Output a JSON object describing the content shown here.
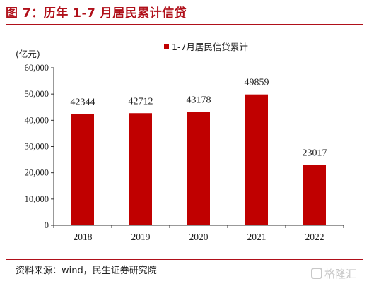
{
  "figure": {
    "title": "图 7：历年 1-7 月居民累计信贷",
    "source": "资料来源：wind，民生证券研究院",
    "watermark": "格隆汇"
  },
  "colors": {
    "bar": "#c00000",
    "accent": "#b0101a"
  },
  "chart_data": {
    "type": "bar",
    "categories": [
      "2018",
      "2019",
      "2020",
      "2021",
      "2022"
    ],
    "series": [
      {
        "name": "1-7月居民信贷累计",
        "values": [
          42344,
          42712,
          43178,
          49859,
          23017
        ]
      }
    ],
    "data_labels": [
      "42344",
      "42712",
      "43178",
      "49859",
      "23017"
    ],
    "ylabel": "(亿元)",
    "ylim": [
      0,
      60000
    ],
    "yticks": [
      "0",
      "10,000",
      "20,000",
      "30,000",
      "40,000",
      "50,000",
      "60,000"
    ],
    "grid": false,
    "legend_position": "top-right"
  }
}
